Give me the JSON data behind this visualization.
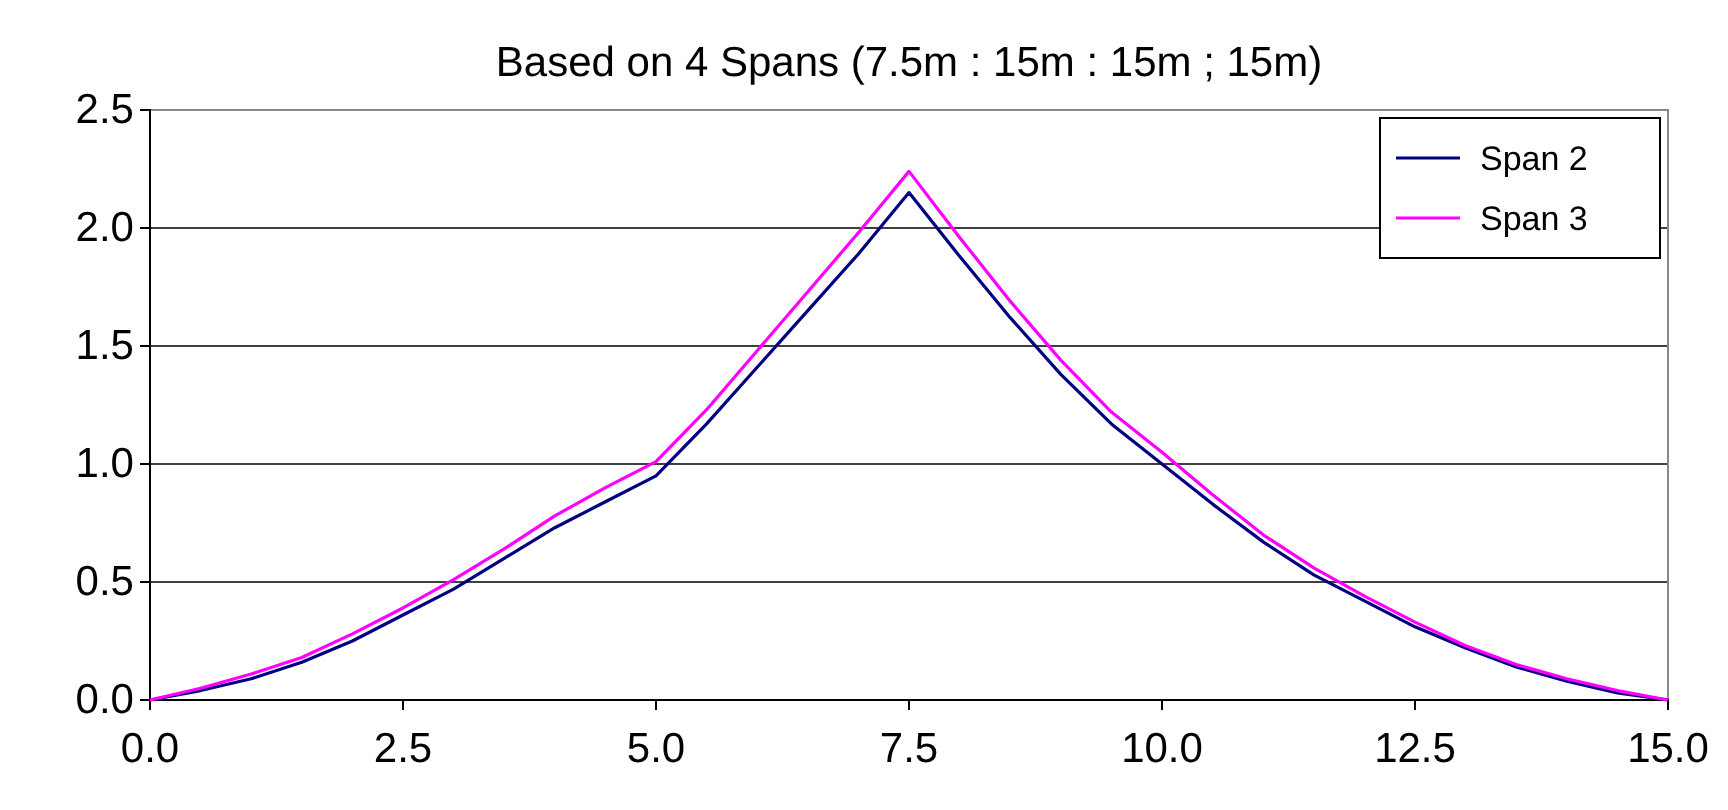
{
  "chart_data": {
    "type": "line",
    "title": "Based on 4 Spans (7.5m : 15m : 15m ; 15m)",
    "x": [
      0,
      0.5,
      1,
      1.5,
      2,
      2.5,
      3,
      3.5,
      4,
      4.5,
      5,
      5.5,
      6,
      6.5,
      7,
      7.5,
      8,
      8.5,
      9,
      9.5,
      10,
      10.5,
      11,
      11.5,
      12,
      12.5,
      13,
      13.5,
      14,
      14.5,
      15
    ],
    "series": [
      {
        "name": "Span 2",
        "color": "#000080",
        "values": [
          0,
          0.04,
          0.09,
          0.16,
          0.25,
          0.36,
          0.47,
          0.6,
          0.73,
          0.84,
          0.95,
          1.17,
          1.41,
          1.65,
          1.89,
          2.15,
          1.88,
          1.62,
          1.38,
          1.17,
          1.0,
          0.83,
          0.67,
          0.53,
          0.42,
          0.31,
          0.22,
          0.14,
          0.08,
          0.03,
          0
        ]
      },
      {
        "name": "Span 3",
        "color": "#ff00ff",
        "values": [
          0,
          0.05,
          0.11,
          0.18,
          0.28,
          0.39,
          0.51,
          0.64,
          0.78,
          0.9,
          1.01,
          1.23,
          1.48,
          1.73,
          1.98,
          2.24,
          1.96,
          1.69,
          1.44,
          1.22,
          1.05,
          0.87,
          0.7,
          0.56,
          0.44,
          0.33,
          0.23,
          0.15,
          0.09,
          0.04,
          0
        ]
      }
    ],
    "xlim": [
      0,
      15
    ],
    "xticks": [
      {
        "value": 0,
        "label": "0.0"
      },
      {
        "value": 2.5,
        "label": "2.5"
      },
      {
        "value": 5,
        "label": "5.0"
      },
      {
        "value": 7.5,
        "label": "7.5"
      },
      {
        "value": 10,
        "label": "10.0"
      },
      {
        "value": 12.5,
        "label": "12.5"
      },
      {
        "value": 15,
        "label": "15.0"
      }
    ],
    "ylim": [
      0,
      2.5
    ],
    "yticks": [
      {
        "value": 0,
        "label": "0.0"
      },
      {
        "value": 0.5,
        "label": "0.5"
      },
      {
        "value": 1,
        "label": "1.0"
      },
      {
        "value": 1.5,
        "label": "1.5"
      },
      {
        "value": 2,
        "label": "2.0"
      },
      {
        "value": 2.5,
        "label": "2.5"
      }
    ],
    "grid": "y",
    "legend": "top right",
    "marker": "none",
    "line_style": "solid"
  }
}
